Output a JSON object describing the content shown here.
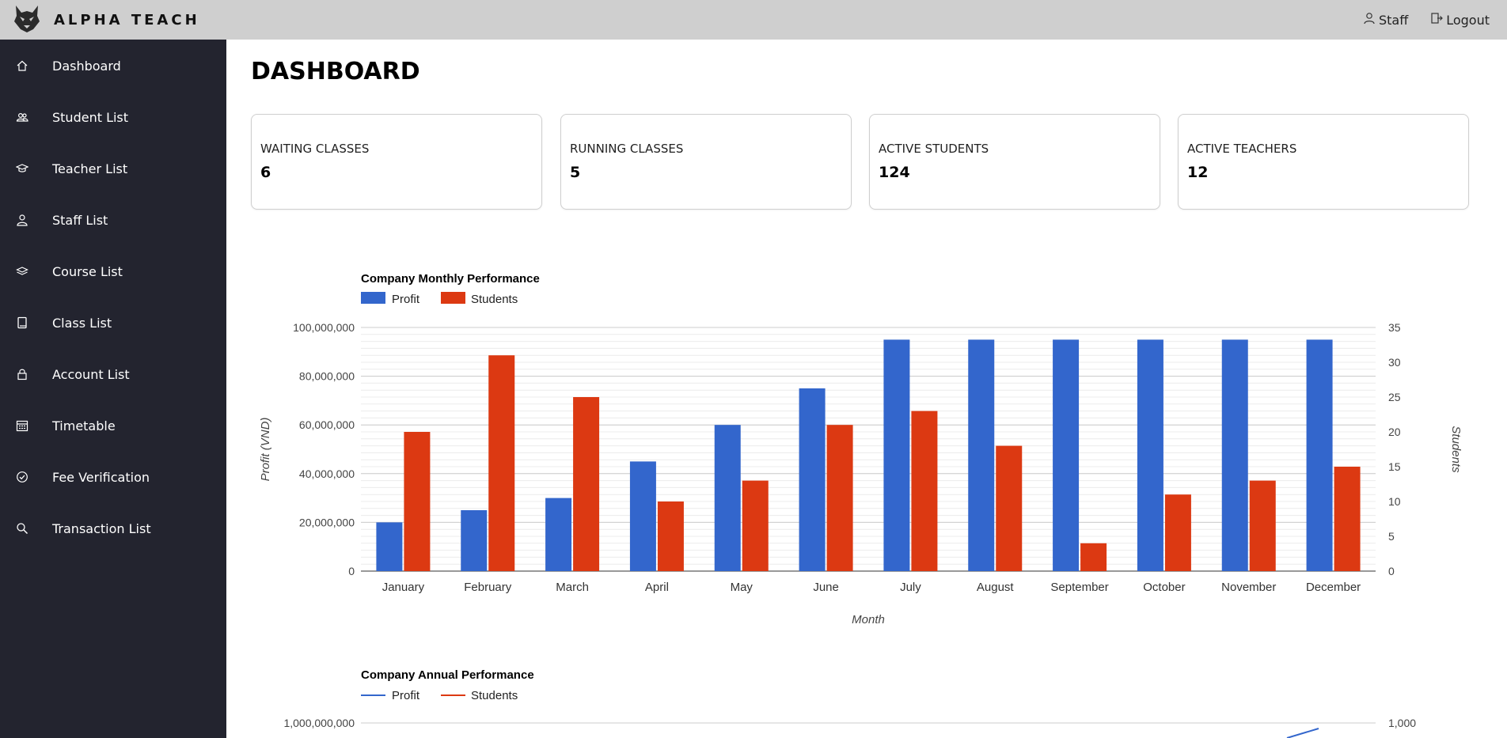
{
  "app": {
    "brand": "ALPHA TEACH"
  },
  "topbar": {
    "staff_label": "Staff",
    "logout_label": "Logout"
  },
  "sidebar": {
    "items": [
      {
        "label": "Dashboard",
        "icon": "home-icon"
      },
      {
        "label": "Student List",
        "icon": "users-icon"
      },
      {
        "label": "Teacher List",
        "icon": "graduation-cap-icon"
      },
      {
        "label": "Staff List",
        "icon": "user-icon"
      },
      {
        "label": "Course List",
        "icon": "layers-icon"
      },
      {
        "label": "Class List",
        "icon": "book-icon"
      },
      {
        "label": "Account List",
        "icon": "lock-icon"
      },
      {
        "label": "Timetable",
        "icon": "calendar-icon"
      },
      {
        "label": "Fee Verification",
        "icon": "check-circle-icon"
      },
      {
        "label": "Transaction List",
        "icon": "search-icon"
      }
    ]
  },
  "page": {
    "title": "DASHBOARD"
  },
  "cards": [
    {
      "label": "WAITING CLASSES",
      "value": "6"
    },
    {
      "label": "RUNNING CLASSES",
      "value": "5"
    },
    {
      "label": "ACTIVE STUDENTS",
      "value": "124"
    },
    {
      "label": "ACTIVE TEACHERS",
      "value": "12"
    }
  ],
  "colors": {
    "profit": "#3366cc",
    "students": "#dc3912",
    "sidebar_bg": "#23242f",
    "topbar_bg": "#cfcfcf"
  },
  "chart_data": [
    {
      "type": "bar",
      "title": "Company Monthly Performance",
      "xlabel": "Month",
      "ylabel": "Profit (VND)",
      "y2label": "Students",
      "legend_position": "top-left",
      "categories": [
        "January",
        "February",
        "March",
        "April",
        "May",
        "June",
        "July",
        "August",
        "September",
        "October",
        "November",
        "December"
      ],
      "ylim": [
        0,
        100000000
      ],
      "y_ticks": [
        "0",
        "20,000,000",
        "40,000,000",
        "60,000,000",
        "80,000,000",
        "100,000,000"
      ],
      "y2lim": [
        0,
        35
      ],
      "y2_ticks": [
        "0",
        "5",
        "10",
        "15",
        "20",
        "25",
        "30",
        "35"
      ],
      "series": [
        {
          "name": "Profit",
          "axis": "left",
          "values": [
            20000000,
            25000000,
            30000000,
            45000000,
            60000000,
            75000000,
            95000000,
            95000000,
            95000000,
            95000000,
            95000000,
            95000000
          ]
        },
        {
          "name": "Students",
          "axis": "right",
          "values": [
            20,
            31,
            25,
            10,
            13,
            21,
            23,
            18,
            4,
            11,
            13,
            15
          ]
        }
      ]
    },
    {
      "type": "line",
      "title": "Company Annual Performance",
      "legend_position": "top-left",
      "y_ticks": [
        "1,000,000,000"
      ],
      "y2_ticks": [
        "1,000"
      ],
      "series": [
        {
          "name": "Profit"
        },
        {
          "name": "Students"
        }
      ]
    }
  ]
}
